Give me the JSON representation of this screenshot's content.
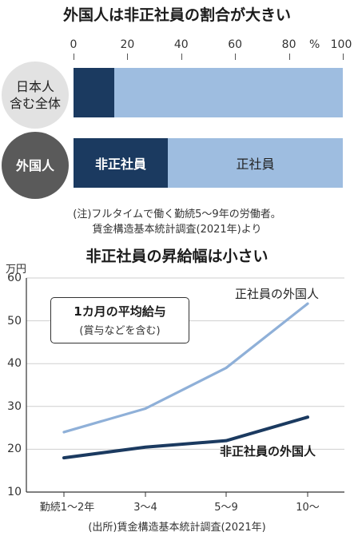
{
  "chart_data": [
    {
      "type": "bar",
      "orientation": "horizontal",
      "stacked": true,
      "title": "外国人は非正社員の割合が大きい",
      "x_ticks": [
        "0",
        "20",
        "40",
        "60",
        "80",
        "100"
      ],
      "unit": "%",
      "xlim": [
        0,
        100
      ],
      "categories": [
        "日本人\n含む全体",
        "外国人"
      ],
      "series": [
        {
          "name": "非正社員",
          "values": [
            15,
            35
          ],
          "color": "#1b3a60"
        },
        {
          "name": "正社員",
          "values": [
            85,
            65
          ],
          "color": "#9ebde0"
        }
      ],
      "note_line1": "(注)フルタイムで働く勤続5〜9年の労働者。",
      "note_line2": "賃金構造基本統計調査(2021年)より"
    },
    {
      "type": "line",
      "title": "非正社員の昇給幅は小さい",
      "ylabel": "万円",
      "ylim": [
        10,
        60
      ],
      "y_ticks": [
        "10",
        "20",
        "30",
        "40",
        "50",
        "60"
      ],
      "categories": [
        "勤続1〜2年",
        "3〜4",
        "5〜9",
        "10〜"
      ],
      "series": [
        {
          "name": "正社員の外国人",
          "values": [
            24,
            29.5,
            39,
            54
          ],
          "color": "#8fb0d8"
        },
        {
          "name": "非正社員の外国人",
          "values": [
            18,
            20.5,
            22,
            27.5
          ],
          "color": "#1b3a60"
        }
      ],
      "legend_title": "1カ月の平均給与",
      "legend_subtitle": "(賞与などを含む)",
      "source": "(出所)賃金構造基本統計調査(2021年)"
    }
  ]
}
